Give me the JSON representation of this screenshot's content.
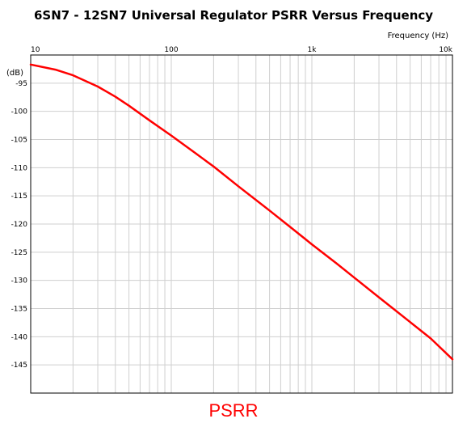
{
  "chart_data": {
    "type": "line",
    "title": "6SN7 - 12SN7 Universal Regulator PSRR Versus Frequency",
    "xlabel": "Frequency  (Hz)",
    "ylabel": "(dB)",
    "x_scale": "log",
    "xlim": [
      10,
      10000
    ],
    "ylim": [
      -150,
      -90
    ],
    "x_ticks": [
      {
        "value": 10,
        "label": "10"
      },
      {
        "value": 100,
        "label": "100"
      },
      {
        "value": 1000,
        "label": "1k"
      },
      {
        "value": 10000,
        "label": "10k"
      }
    ],
    "y_ticks": [
      {
        "value": -95,
        "label": "-95"
      },
      {
        "value": -100,
        "label": "-100"
      },
      {
        "value": -105,
        "label": "-105"
      },
      {
        "value": -110,
        "label": "-110"
      },
      {
        "value": -115,
        "label": "-115"
      },
      {
        "value": -120,
        "label": "-120"
      },
      {
        "value": -125,
        "label": "-125"
      },
      {
        "value": -130,
        "label": "-130"
      },
      {
        "value": -135,
        "label": "-135"
      },
      {
        "value": -140,
        "label": "-140"
      },
      {
        "value": -145,
        "label": "-145"
      }
    ],
    "grid": true,
    "legend_position": "bottom-center",
    "series": [
      {
        "name": "PSRR",
        "color": "#ff0000",
        "x": [
          10,
          15,
          20,
          30,
          40,
          50,
          70,
          100,
          150,
          200,
          300,
          500,
          700,
          1000,
          1500,
          2000,
          3000,
          5000,
          7000,
          10000
        ],
        "y": [
          -91.7,
          -92.6,
          -93.6,
          -95.6,
          -97.4,
          -99.0,
          -101.6,
          -104.3,
          -107.5,
          -109.8,
          -113.3,
          -117.6,
          -120.5,
          -123.6,
          -127.0,
          -129.5,
          -133.0,
          -137.4,
          -140.3,
          -144.0
        ]
      }
    ]
  }
}
